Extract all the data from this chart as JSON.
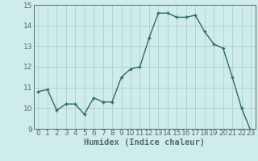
{
  "x": [
    0,
    1,
    2,
    3,
    4,
    5,
    6,
    7,
    8,
    9,
    10,
    11,
    12,
    13,
    14,
    15,
    16,
    17,
    18,
    19,
    20,
    21,
    22,
    23
  ],
  "y": [
    10.8,
    10.9,
    9.9,
    10.2,
    10.2,
    9.7,
    10.5,
    10.3,
    10.3,
    11.5,
    11.9,
    12.0,
    13.4,
    14.6,
    14.6,
    14.4,
    14.4,
    14.5,
    13.7,
    13.1,
    12.9,
    11.5,
    10.0,
    8.9
  ],
  "line_color": "#2d6b60",
  "marker": "+",
  "marker_size": 3,
  "marker_linewidth": 1.0,
  "bg_color": "#ceecea",
  "grid_color": "#b0ceca",
  "xlabel": "Humidex (Indice chaleur)",
  "ylim": [
    9,
    15
  ],
  "xlim": [
    -0.5,
    23.5
  ],
  "yticks": [
    9,
    10,
    11,
    12,
    13,
    14,
    15
  ],
  "xticks": [
    0,
    1,
    2,
    3,
    4,
    5,
    6,
    7,
    8,
    9,
    10,
    11,
    12,
    13,
    14,
    15,
    16,
    17,
    18,
    19,
    20,
    21,
    22,
    23
  ],
  "tick_fontsize": 6.5,
  "xlabel_fontsize": 7.5,
  "spine_color": "#5a6a6a",
  "linewidth": 1.0
}
